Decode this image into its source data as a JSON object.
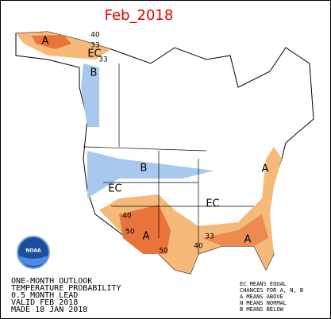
{
  "title": "Feb_2018",
  "logo": {
    "text": "NOAA"
  },
  "map_labels": [
    "A",
    "40",
    "33",
    "EC",
    "33",
    "B",
    "B",
    "EC",
    "A",
    "EC",
    "40",
    "50",
    "A",
    "50",
    "33",
    "40",
    "A"
  ],
  "notes": [
    "ONE-MONTH OUTLOOK",
    "TEMPERATURE PROBABILITY",
    "0.5 MONTH LEAD",
    "VALID FEB 2018",
    "MADE 18 JAN 2018"
  ],
  "legend": [
    "EC MEANS EQUAL",
    "CHANCES FOR A, N, B",
    "A MEANS ABOVE",
    "N MEANS NORMAL",
    "B MEANS BELOW"
  ]
}
